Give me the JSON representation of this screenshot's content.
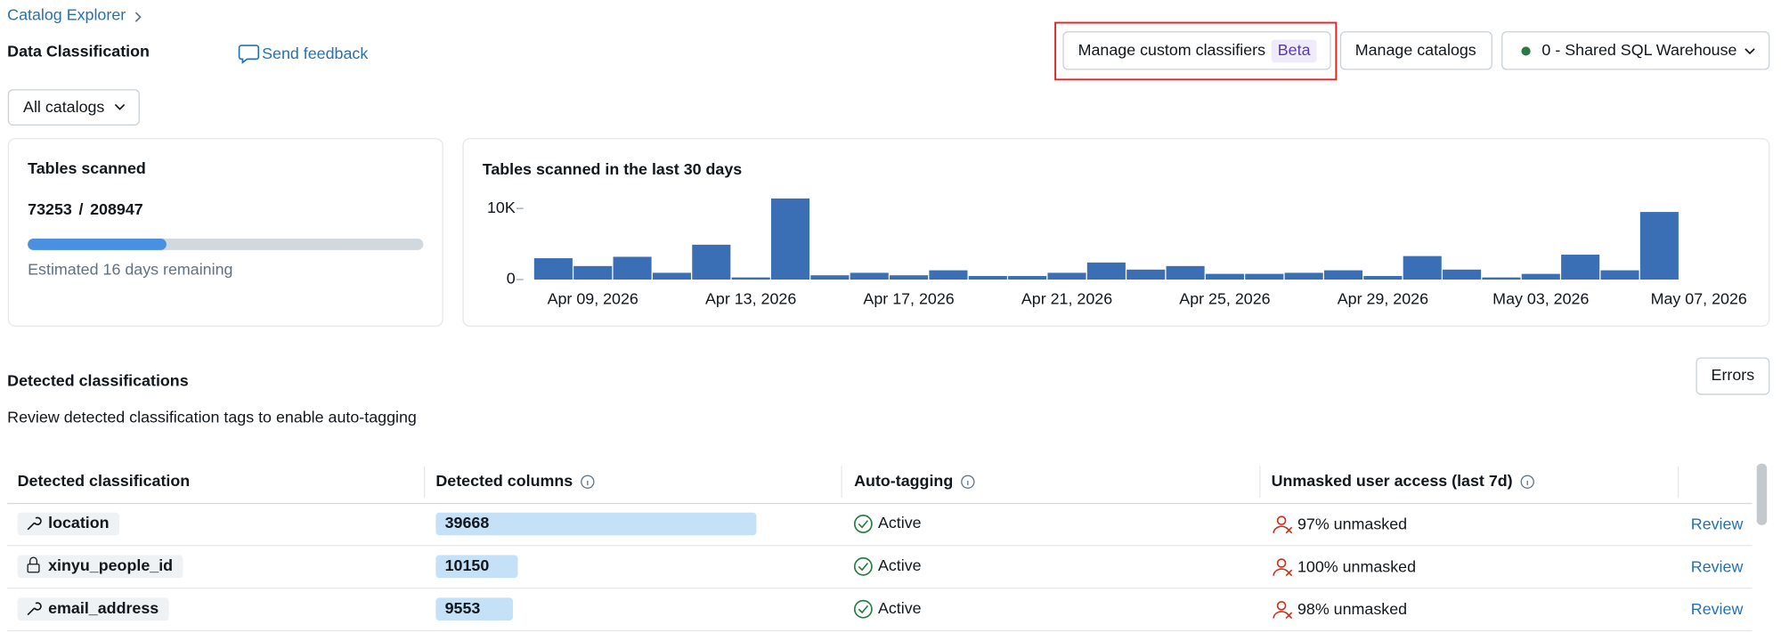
{
  "breadcrumb": "Catalog Explorer",
  "header": {
    "title": "Data Classification",
    "feedback": "Send feedback"
  },
  "actions": {
    "custom_classifiers": "Manage custom classifiers",
    "beta": "Beta",
    "manage_catalogs": "Manage catalogs",
    "warehouse": "0 - Shared SQL Warehouse"
  },
  "filter": "All catalogs",
  "tables_scanned": {
    "title": "Tables scanned",
    "scanned": 73253,
    "separator": "/",
    "total": 208947,
    "remaining": "Estimated 16 days remaining"
  },
  "chart_data": {
    "type": "bar",
    "title": "Tables scanned in the last 30 days",
    "categories": [
      null,
      "Apr 09, 2026",
      null,
      null,
      null,
      "Apr 13, 2026",
      null,
      null,
      null,
      "Apr 17, 2026",
      null,
      null,
      null,
      "Apr 21, 2026",
      null,
      null,
      null,
      "Apr 25, 2026",
      null,
      null,
      null,
      "Apr 29, 2026",
      null,
      null,
      null,
      "May 03, 2026",
      null,
      null,
      null,
      "May 07, 2026"
    ],
    "values": [
      3000,
      1900,
      3200,
      950,
      4900,
      300,
      11400,
      600,
      950,
      600,
      1300,
      500,
      500,
      950,
      2400,
      1400,
      1900,
      800,
      800,
      950,
      1300,
      500,
      3300,
      1400,
      300,
      800,
      3500,
      1300,
      9500,
      null
    ],
    "color": "#3a6fb5",
    "ylim": [
      0,
      11500
    ],
    "yticks": [
      0,
      {
        "value": 10000,
        "label": "10K"
      }
    ]
  },
  "section": {
    "title": "Detected classifications",
    "subtitle": "Review detected classification tags to enable auto-tagging",
    "errors": "Errors"
  },
  "table": {
    "columns": [
      "Detected classification",
      "Detected columns",
      "Auto-tagging",
      "Unmasked user access (last 7d)"
    ],
    "rows": [
      {
        "name": "location",
        "detected_columns": 39668,
        "auto_tagging": "Active",
        "access": "97% unmasked",
        "action": "Review"
      },
      {
        "name": "xinyu_people_id",
        "detected_columns": 10150,
        "auto_tagging": "Active",
        "access": "100% unmasked",
        "action": "Review"
      },
      {
        "name": "email_address",
        "detected_columns": 9553,
        "auto_tagging": "Active",
        "access": "98% unmasked",
        "action": "Review"
      }
    ]
  }
}
